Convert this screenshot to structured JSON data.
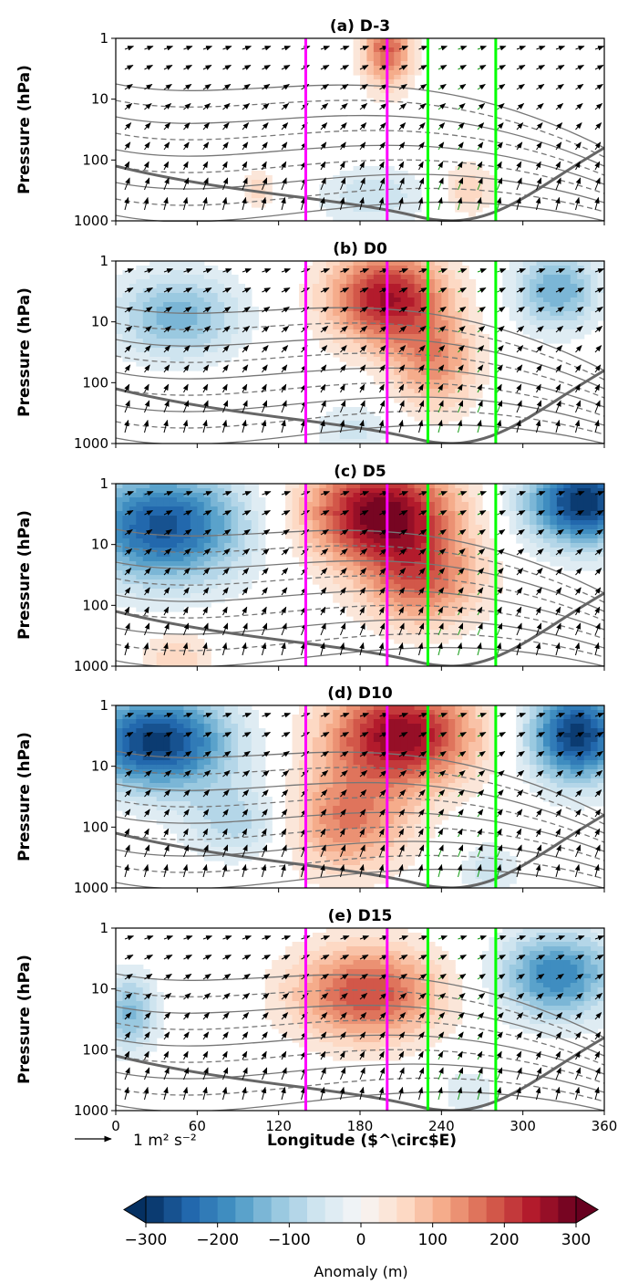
{
  "chart_data": {
    "type": "heatmap",
    "panels": [
      {
        "title": "(a) D-3",
        "lobes": [
          {
            "lon": 200,
            "p": 1.5,
            "amp": 180,
            "slon": 13,
            "slp": 0.45
          },
          {
            "lon": 105,
            "p": 300,
            "amp": 60,
            "slon": 8,
            "slp": 0.25
          },
          {
            "lon": 190,
            "p": 400,
            "amp": -70,
            "slon": 28,
            "slp": 0.35
          },
          {
            "lon": 260,
            "p": 300,
            "amp": 70,
            "slon": 14,
            "slp": 0.3
          }
        ]
      },
      {
        "title": "(b) D0",
        "lobes": [
          {
            "lon": 200,
            "p": 4,
            "amp": 250,
            "slon": 30,
            "slp": 0.55
          },
          {
            "lon": 235,
            "p": 50,
            "amp": 130,
            "slon": 22,
            "slp": 0.55
          },
          {
            "lon": 45,
            "p": 8,
            "amp": -140,
            "slon": 32,
            "slp": 0.5
          },
          {
            "lon": 325,
            "p": 3,
            "amp": -150,
            "slon": 22,
            "slp": 0.45
          },
          {
            "lon": 175,
            "p": 600,
            "amp": -60,
            "slon": 20,
            "slp": 0.3
          }
        ]
      },
      {
        "title": "(c) D5",
        "lobes": [
          {
            "lon": 195,
            "p": 3,
            "amp": 290,
            "slon": 38,
            "slp": 0.6
          },
          {
            "lon": 225,
            "p": 40,
            "amp": 160,
            "slon": 30,
            "slp": 0.55
          },
          {
            "lon": 35,
            "p": 5,
            "amp": -260,
            "slon": 42,
            "slp": 0.65
          },
          {
            "lon": 345,
            "p": 2,
            "amp": -300,
            "slon": 30,
            "slp": 0.5
          },
          {
            "lon": 45,
            "p": 700,
            "amp": 70,
            "slon": 18,
            "slp": 0.3
          }
        ]
      },
      {
        "title": "(d) D10",
        "lobes": [
          {
            "lon": 210,
            "p": 3,
            "amp": 270,
            "slon": 38,
            "slp": 0.6
          },
          {
            "lon": 170,
            "p": 80,
            "amp": 150,
            "slon": 32,
            "slp": 0.6
          },
          {
            "lon": 30,
            "p": 4,
            "amp": -290,
            "slon": 38,
            "slp": 0.55
          },
          {
            "lon": 90,
            "p": 80,
            "amp": -90,
            "slon": 28,
            "slp": 0.45
          },
          {
            "lon": 340,
            "p": 3,
            "amp": -290,
            "slon": 25,
            "slp": 0.55
          },
          {
            "lon": 275,
            "p": 500,
            "amp": -70,
            "slon": 14,
            "slp": 0.3
          }
        ]
      },
      {
        "title": "(e) D15",
        "lobes": [
          {
            "lon": 185,
            "p": 12,
            "amp": 200,
            "slon": 38,
            "slp": 0.55
          },
          {
            "lon": 325,
            "p": 6,
            "amp": -200,
            "slon": 30,
            "slp": 0.5
          },
          {
            "lon": 10,
            "p": 25,
            "amp": -130,
            "slon": 14,
            "slp": 0.45
          },
          {
            "lon": 260,
            "p": 500,
            "amp": -50,
            "slon": 14,
            "slp": 0.3
          }
        ]
      }
    ],
    "xlabel": "Longitude ($^\\circ$E)",
    "ylabel": "Pressure (hPa)",
    "xlim": [
      0,
      360
    ],
    "xticks": [
      "0",
      "60",
      "120",
      "180",
      "240",
      "300",
      "360"
    ],
    "ylim": [
      1000,
      1
    ],
    "yscale": "log",
    "yticks": [
      "1",
      "10",
      "100",
      "1000"
    ],
    "vertical_lines": [
      {
        "lon": 140,
        "color": "#ff00ff"
      },
      {
        "lon": 200,
        "color": "#ff00ff"
      },
      {
        "lon": 230,
        "color": "#00ff00"
      },
      {
        "lon": 280,
        "color": "#00ff00"
      }
    ],
    "vector_key": {
      "label": "1 m² s⁻²"
    },
    "colorbar": {
      "label": "Anomaly (m)",
      "min": -300,
      "max": 300,
      "step": 25,
      "ticks": [
        "−300",
        "−200",
        "−100",
        "0",
        "100",
        "200",
        "300"
      ],
      "cmap": "RdBu_r",
      "extend": "both"
    }
  }
}
